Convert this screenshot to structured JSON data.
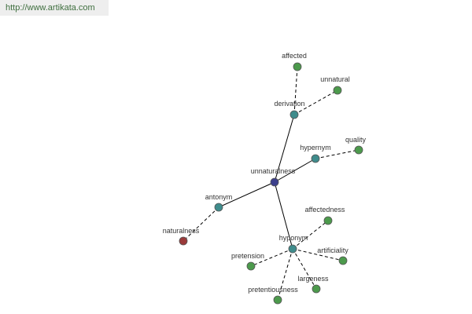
{
  "header": {
    "url": "http://www.artikata.com"
  },
  "nodes": [
    {
      "label": "unnaturalness"
    },
    {
      "label": "derivation"
    },
    {
      "label": "hypernym"
    },
    {
      "label": "antonym"
    },
    {
      "label": "hyponym"
    },
    {
      "label": "affected"
    },
    {
      "label": "unnatural"
    },
    {
      "label": "quality"
    },
    {
      "label": "naturalness"
    },
    {
      "label": "affectedness"
    },
    {
      "label": "artificiality"
    },
    {
      "label": "largeness"
    },
    {
      "label": "pretentiousness"
    },
    {
      "label": "pretension"
    }
  ]
}
